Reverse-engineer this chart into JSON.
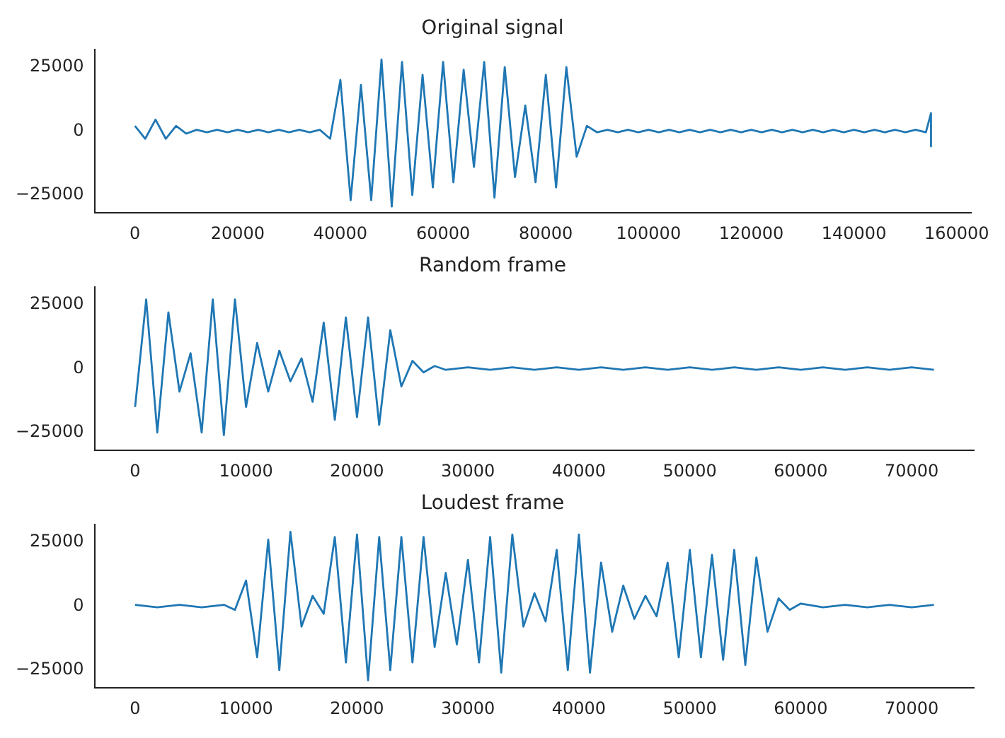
{
  "chart_data": [
    {
      "type": "line",
      "title": "Original signal",
      "color": "#1f77b4",
      "x": [
        0,
        2000,
        4000,
        6000,
        8000,
        10000,
        12000,
        14000,
        16000,
        18000,
        20000,
        22000,
        24000,
        26000,
        28000,
        30000,
        32000,
        34000,
        36000,
        38000,
        40000,
        42000,
        44000,
        46000,
        48000,
        50000,
        52000,
        54000,
        56000,
        58000,
        60000,
        62000,
        64000,
        66000,
        68000,
        70000,
        72000,
        74000,
        76000,
        78000,
        80000,
        82000,
        84000,
        86000,
        88000,
        90000,
        92000,
        94000,
        96000,
        98000,
        100000,
        102000,
        104000,
        106000,
        108000,
        110000,
        112000,
        114000,
        116000,
        118000,
        120000,
        122000,
        124000,
        126000,
        128000,
        130000,
        132000,
        134000,
        136000,
        138000,
        140000,
        142000,
        144000,
        146000,
        148000,
        150000,
        152000,
        154000,
        155000,
        155000
      ],
      "values": [
        2000,
        -3000,
        4500,
        -3000,
        2000,
        -1000,
        500,
        -500,
        500,
        -500,
        500,
        -500,
        500,
        -500,
        500,
        -500,
        500,
        -500,
        500,
        -3000,
        20000,
        -27000,
        18000,
        -27000,
        28000,
        -29500,
        27000,
        -25000,
        22000,
        -22000,
        27000,
        -20000,
        24000,
        -14000,
        27000,
        -26000,
        25000,
        -18000,
        10000,
        -20000,
        22000,
        -22000,
        25000,
        -10000,
        2000,
        -500,
        500,
        -500,
        500,
        -500,
        500,
        -500,
        500,
        -500,
        500,
        -500,
        500,
        -500,
        500,
        -500,
        500,
        -500,
        500,
        -500,
        500,
        -500,
        500,
        -500,
        500,
        -500,
        500,
        -500,
        500,
        -500,
        500,
        -500,
        500,
        -500,
        7000,
        -6000
      ],
      "xlim": [
        -7750,
        162750
      ],
      "xticks": [
        0,
        20000,
        40000,
        60000,
        80000,
        100000,
        120000,
        140000,
        160000
      ],
      "ylim": [
        -32000,
        32000
      ],
      "yticks": [
        -25000,
        0,
        25000
      ]
    },
    {
      "type": "line",
      "title": "Random frame",
      "color": "#1f77b4",
      "x": [
        0,
        1000,
        2000,
        3000,
        4000,
        5000,
        6000,
        7000,
        8000,
        9000,
        10000,
        11000,
        12000,
        13000,
        14000,
        15000,
        16000,
        17000,
        18000,
        19000,
        20000,
        21000,
        22000,
        23000,
        24000,
        25000,
        26000,
        27000,
        28000,
        30000,
        32000,
        34000,
        36000,
        38000,
        40000,
        42000,
        44000,
        46000,
        48000,
        50000,
        52000,
        54000,
        56000,
        58000,
        60000,
        62000,
        64000,
        66000,
        68000,
        70000,
        72000
      ],
      "values": [
        -15000,
        27000,
        -25000,
        22000,
        -9000,
        6000,
        -25000,
        27000,
        -26000,
        27000,
        -15000,
        10000,
        -9000,
        7000,
        -5000,
        4000,
        -13000,
        18000,
        -20000,
        20000,
        -19000,
        20000,
        -22000,
        15000,
        -7000,
        3000,
        -1500,
        1000,
        -500,
        500,
        -500,
        500,
        -500,
        500,
        -500,
        500,
        -500,
        500,
        -500,
        500,
        -500,
        500,
        -500,
        500,
        -500,
        500,
        -500,
        500,
        -500,
        500,
        -500
      ],
      "xlim": [
        -3600,
        75600
      ],
      "xticks": [
        0,
        10000,
        20000,
        30000,
        40000,
        50000,
        60000,
        70000
      ],
      "ylim": [
        -32000,
        32000
      ],
      "yticks": [
        -25000,
        0,
        25000
      ]
    },
    {
      "type": "line",
      "title": "Loudest frame",
      "color": "#1f77b4",
      "x": [
        0,
        2000,
        4000,
        6000,
        8000,
        9000,
        10000,
        11000,
        12000,
        13000,
        14000,
        15000,
        16000,
        17000,
        18000,
        19000,
        20000,
        21000,
        22000,
        23000,
        24000,
        25000,
        26000,
        27000,
        28000,
        29000,
        30000,
        31000,
        32000,
        33000,
        34000,
        35000,
        36000,
        37000,
        38000,
        39000,
        40000,
        41000,
        42000,
        43000,
        44000,
        45000,
        46000,
        47000,
        48000,
        49000,
        50000,
        51000,
        52000,
        53000,
        54000,
        55000,
        56000,
        57000,
        58000,
        59000,
        60000,
        62000,
        64000,
        66000,
        68000,
        70000,
        72000
      ],
      "values": [
        500,
        -500,
        500,
        -500,
        500,
        -1500,
        10000,
        -20000,
        26000,
        -25000,
        29000,
        -8000,
        4000,
        -3000,
        27000,
        -22000,
        28000,
        -29000,
        27000,
        -25000,
        27000,
        -22000,
        27000,
        -16000,
        13000,
        -15000,
        18000,
        -22000,
        27000,
        -26000,
        28000,
        -8000,
        5000,
        -6000,
        22000,
        -25000,
        28000,
        -26000,
        17000,
        -10000,
        8000,
        -5000,
        4000,
        -4000,
        17000,
        -20000,
        22000,
        -20000,
        20000,
        -21000,
        22000,
        -23000,
        19000,
        -10000,
        3000,
        -1500,
        1000,
        -500,
        500,
        -500,
        500,
        -500,
        500
      ],
      "xlim": [
        -3600,
        75600
      ],
      "xticks": [
        0,
        10000,
        20000,
        30000,
        40000,
        50000,
        60000,
        70000
      ],
      "ylim": [
        -32000,
        32000
      ],
      "yticks": [
        -25000,
        0,
        25000
      ]
    }
  ]
}
